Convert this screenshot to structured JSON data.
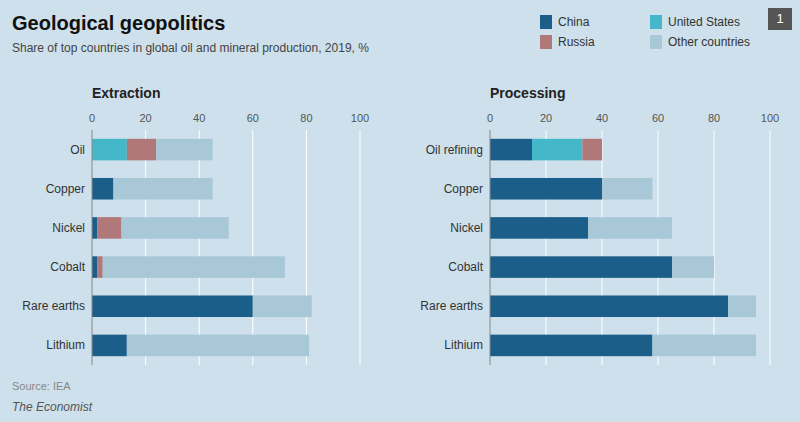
{
  "title": "Geological geopolitics",
  "subtitle": "Share of top countries in global oil and mineral production, 2019, %",
  "source": "Source: IEA",
  "footer": "The Economist",
  "annotations": [
    "1"
  ],
  "chart_data": [
    {
      "type": "bar",
      "orientation": "horizontal",
      "stacked": true,
      "grid": true,
      "legend": "top-right",
      "title": "Extraction",
      "categories": [
        "Oil",
        "Copper",
        "Nickel",
        "Cobalt",
        "Rare earths",
        "Lithium"
      ],
      "series": [
        {
          "name": "China",
          "color": "#1b5e8a",
          "values": [
            0,
            8,
            2,
            2,
            60,
            13
          ]
        },
        {
          "name": "United States",
          "color": "#44b8c8",
          "values": [
            13,
            0,
            0,
            0,
            0,
            0
          ]
        },
        {
          "name": "Russia",
          "color": "#b07878",
          "values": [
            11,
            0,
            9,
            2,
            0,
            0
          ]
        },
        {
          "name": "Other countries",
          "color": "#a8c8d8",
          "values": [
            21,
            37,
            40,
            68,
            22,
            68
          ]
        }
      ],
      "xlim": [
        0,
        100
      ],
      "xticks": [
        0,
        20,
        40,
        60,
        80,
        100
      ]
    },
    {
      "type": "bar",
      "orientation": "horizontal",
      "stacked": true,
      "grid": true,
      "title": "Processing",
      "categories": [
        "Oil refining",
        "Copper",
        "Nickel",
        "Cobalt",
        "Rare earths",
        "Lithium"
      ],
      "series": [
        {
          "name": "China",
          "color": "#1b5e8a",
          "values": [
            15,
            40,
            35,
            65,
            85,
            58
          ]
        },
        {
          "name": "United States",
          "color": "#44b8c8",
          "values": [
            18,
            0,
            0,
            0,
            0,
            0
          ]
        },
        {
          "name": "Russia",
          "color": "#b07878",
          "values": [
            7,
            0,
            0,
            0,
            0,
            0
          ]
        },
        {
          "name": "Other countries",
          "color": "#a8c8d8",
          "values": [
            0,
            18,
            30,
            15,
            10,
            37
          ]
        }
      ],
      "xlim": [
        0,
        100
      ],
      "xticks": [
        0,
        20,
        40,
        60,
        80,
        100
      ]
    }
  ]
}
